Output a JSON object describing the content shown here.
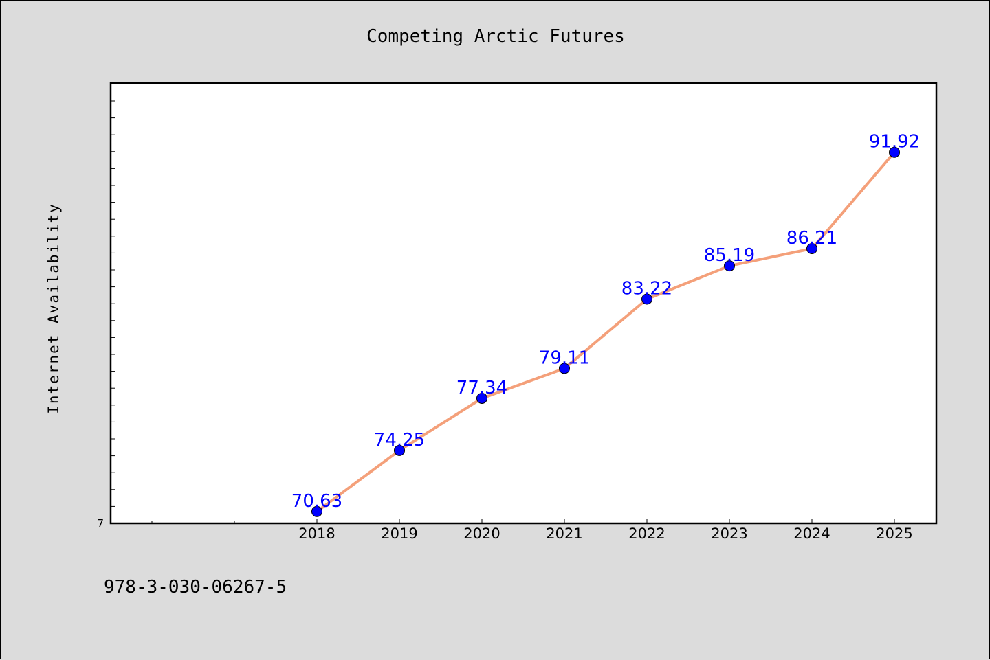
{
  "chart_data": {
    "type": "line",
    "title": "Competing Arctic Futures",
    "xlabel": "",
    "ylabel": "Internet Availability",
    "categories": [
      "2018",
      "2019",
      "2020",
      "2021",
      "2022",
      "2023",
      "2024",
      "2025"
    ],
    "x_axis_slots": 10,
    "series": [
      {
        "values": [
          70.63,
          74.25,
          77.34,
          79.11,
          83.22,
          85.19,
          86.21,
          91.92
        ]
      }
    ],
    "data_labels": [
      "70.63",
      "74.25",
      "77.34",
      "79.11",
      "83.22",
      "85.19",
      "86.21",
      "91.92"
    ],
    "y_tick_label": "7",
    "ylim": [
      69.93,
      96.02
    ],
    "grid": false,
    "line_color": "#f4a07a",
    "marker_color": "#0000ff",
    "label_color": "#0000ff"
  },
  "footer": {
    "isbn": "978-3-030-06267-5"
  }
}
